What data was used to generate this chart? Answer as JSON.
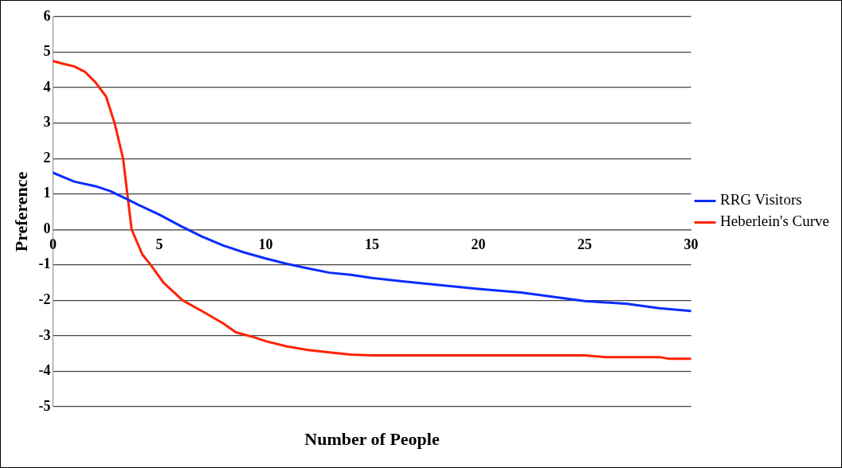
{
  "chart_data": {
    "type": "line",
    "xlabel": "Number of People",
    "ylabel": "Preference",
    "xlim": [
      0,
      30
    ],
    "xticks": [
      0,
      5,
      10,
      15,
      20,
      25,
      30
    ],
    "ylim": [
      -5,
      6
    ],
    "yticks": [
      -5,
      -4,
      -3,
      -2,
      -1,
      0,
      1,
      2,
      3,
      4,
      5,
      6
    ],
    "grid": "y",
    "legend": "right",
    "marker": "none",
    "line_style": "solid",
    "series": [
      {
        "name": "RRG Visitors",
        "color": "#0a2cff",
        "x": [
          0,
          1,
          2,
          2.7,
          3.5,
          4,
          5,
          6,
          7,
          8,
          9,
          10,
          11,
          12,
          13,
          14,
          15,
          17,
          20,
          22,
          25,
          27,
          28.5,
          30
        ],
        "values": [
          1.6,
          1.35,
          1.22,
          1.08,
          0.85,
          0.7,
          0.42,
          0.1,
          -0.2,
          -0.45,
          -0.65,
          -0.82,
          -0.97,
          -1.1,
          -1.22,
          -1.28,
          -1.37,
          -1.5,
          -1.68,
          -1.78,
          -2.02,
          -2.1,
          -2.22,
          -2.3
        ]
      },
      {
        "name": "Heberlein's Curve",
        "color": "#ff2200",
        "x": [
          0,
          0.5,
          1,
          1.5,
          2,
          2.5,
          2.9,
          3.3,
          3.7,
          4.2,
          4.6,
          5.2,
          6.1,
          7,
          8,
          8.6,
          9.5,
          10,
          11,
          12,
          13,
          14,
          15,
          20,
          25,
          26,
          28.5,
          29,
          30
        ],
        "values": [
          4.75,
          4.67,
          4.6,
          4.45,
          4.15,
          3.75,
          3.0,
          2.0,
          0,
          -0.7,
          -1.0,
          -1.5,
          -2.0,
          -2.3,
          -2.65,
          -2.9,
          -3.05,
          -3.15,
          -3.3,
          -3.4,
          -3.47,
          -3.53,
          -3.55,
          -3.55,
          -3.55,
          -3.6,
          -3.6,
          -3.65,
          -3.65
        ]
      }
    ]
  }
}
